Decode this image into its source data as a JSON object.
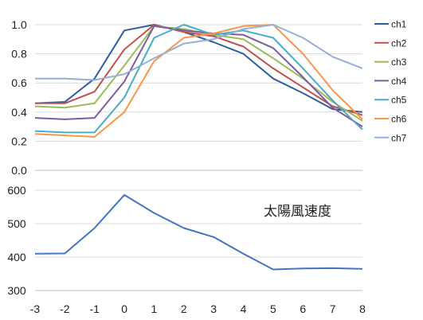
{
  "chart_data": [
    {
      "type": "line",
      "x": [
        -3,
        -2,
        -1,
        0,
        1,
        2,
        3,
        4,
        5,
        6,
        7,
        8
      ],
      "ylim": [
        0,
        1.0
      ],
      "yticks": [
        "0.0",
        "0.2",
        "0.4",
        "0.6",
        "0.8",
        "1.0"
      ],
      "grid": true,
      "legend_position": "right",
      "series": [
        {
          "name": "ch1",
          "color": "#2e5f9e",
          "values": [
            0.46,
            0.47,
            0.63,
            0.96,
            1.0,
            0.95,
            0.88,
            0.8,
            0.63,
            0.53,
            0.42,
            0.4
          ]
        },
        {
          "name": "ch2",
          "color": "#c0504d",
          "values": [
            0.46,
            0.46,
            0.54,
            0.83,
            1.0,
            0.95,
            0.92,
            0.85,
            0.7,
            0.57,
            0.44,
            0.38
          ]
        },
        {
          "name": "ch3",
          "color": "#9bbb59",
          "values": [
            0.44,
            0.43,
            0.46,
            0.72,
            0.99,
            0.97,
            0.93,
            0.9,
            0.77,
            0.63,
            0.47,
            0.34
          ]
        },
        {
          "name": "ch4",
          "color": "#7d5c9e",
          "values": [
            0.36,
            0.35,
            0.36,
            0.61,
            0.99,
            0.96,
            0.94,
            0.93,
            0.84,
            0.64,
            0.43,
            0.3
          ]
        },
        {
          "name": "ch5",
          "color": "#4bacc6",
          "values": [
            0.27,
            0.26,
            0.26,
            0.5,
            0.91,
            1.0,
            0.93,
            0.96,
            0.91,
            0.7,
            0.48,
            0.28
          ]
        },
        {
          "name": "ch6",
          "color": "#f79646",
          "values": [
            0.25,
            0.24,
            0.23,
            0.4,
            0.75,
            0.91,
            0.94,
            0.99,
            1.0,
            0.8,
            0.55,
            0.35
          ]
        },
        {
          "name": "ch7",
          "color": "#94b0d6",
          "values": [
            0.63,
            0.63,
            0.62,
            0.66,
            0.77,
            0.87,
            0.9,
            0.97,
            1.0,
            0.91,
            0.78,
            0.7
          ]
        }
      ]
    },
    {
      "type": "line",
      "x": [
        -3,
        -2,
        -1,
        0,
        1,
        2,
        3,
        4,
        5,
        6,
        7,
        8
      ],
      "xticks": [
        "-3",
        "-2",
        "-1",
        "0",
        "1",
        "2",
        "3",
        "4",
        "5",
        "6",
        "7",
        "8"
      ],
      "ylim": [
        300,
        600
      ],
      "yticks": [
        "300",
        "400",
        "500",
        "600"
      ],
      "grid": true,
      "annotation": "太陽風速度",
      "series": [
        {
          "color": "#4472c4",
          "values": [
            410,
            411,
            487,
            586,
            532,
            487,
            460,
            410,
            363,
            366,
            367,
            365
          ]
        }
      ]
    }
  ]
}
